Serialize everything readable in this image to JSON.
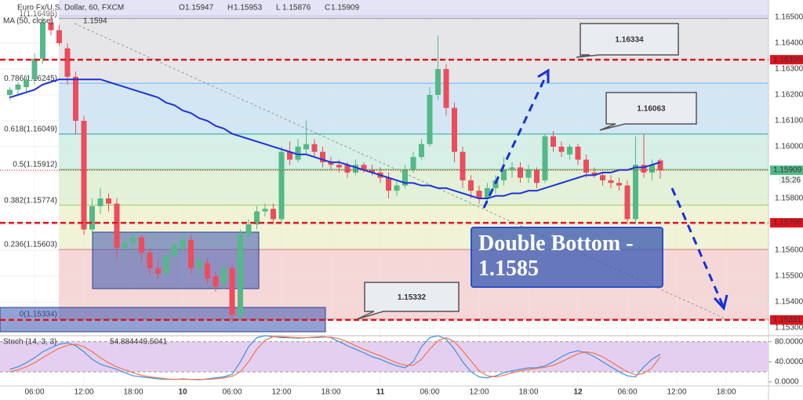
{
  "chart_data": {
    "type": "candlestick",
    "title": "Euro Fx/U.S. Dollar, 60, FXCM",
    "ohlc_legend": [
      {
        "name": "O",
        "value": 1.15947
      },
      {
        "name": "H",
        "value": 1.15953
      },
      {
        "name": "L",
        "value": 1.15876
      },
      {
        "name": "C",
        "value": 1.15909
      }
    ],
    "categories": [
      null,
      null,
      null,
      "06:00",
      null,
      null,
      null,
      null,
      null,
      "12:00",
      null,
      null,
      null,
      null,
      null,
      "18:00",
      null,
      null,
      null,
      null,
      null,
      "10",
      null,
      null,
      null,
      null,
      null,
      "06:00",
      null,
      null,
      null,
      null,
      null,
      "12:00",
      null,
      null,
      null,
      null,
      null,
      "18:00",
      null,
      null,
      null,
      null,
      null,
      "11",
      null,
      null,
      null,
      null,
      null,
      "06:00",
      null,
      null,
      null,
      null,
      null,
      "12:00",
      null,
      null,
      null,
      null,
      null,
      "18:00",
      null,
      null,
      null,
      null,
      null,
      "12",
      null,
      null,
      null,
      null,
      null,
      "06:00",
      null,
      null,
      null,
      null,
      null,
      "12:00",
      null,
      null,
      null,
      null,
      null,
      "18:00",
      null,
      null,
      null,
      null
    ],
    "open": [
      1.162,
      1.1622,
      1.1623,
      1.1626,
      1.1634,
      1.1648,
      1.1645,
      1.1638,
      1.1627,
      1.161,
      1.1568,
      1.1577,
      1.158,
      1.1578,
      1.1561,
      1.1563,
      1.1565,
      1.1559,
      1.1553,
      1.1551,
      1.1558,
      1.1561,
      1.1564,
      1.1553,
      1.1555,
      1.155,
      1.1547,
      1.1553,
      1.1535,
      1.1566,
      1.157,
      1.1575,
      1.1576,
      1.1572,
      1.1598,
      1.1595,
      1.1599,
      1.1601,
      1.1598,
      1.1594,
      1.1593,
      1.1593,
      1.159,
      1.1593,
      1.1591,
      1.159,
      1.1588,
      1.1583,
      1.1585,
      1.1591,
      1.1596,
      1.1601,
      1.162,
      1.163,
      1.1615,
      1.1598,
      1.1587,
      1.1583,
      1.158,
      1.1584,
      1.1587,
      1.1591,
      1.1592,
      1.1588,
      1.1591,
      1.1587,
      1.1604,
      1.16,
      1.1597,
      1.16,
      1.1595,
      1.159,
      1.1589,
      1.1587,
      1.1586,
      1.1585,
      1.1572,
      1.1593,
      1.159,
      1.15947,
      null,
      null,
      null,
      null,
      null,
      null,
      null,
      null,
      null,
      null,
      null,
      null
    ],
    "high": [
      1.1623,
      1.1625,
      1.1627,
      1.1636,
      1.165,
      1.1652,
      1.1647,
      1.164,
      1.1629,
      1.1612,
      1.158,
      1.1584,
      1.1582,
      1.158,
      1.1566,
      1.1567,
      1.1566,
      1.1561,
      1.1556,
      1.156,
      1.1563,
      1.1566,
      1.1566,
      1.1558,
      1.1557,
      1.1552,
      1.1555,
      1.1555,
      1.1568,
      1.1572,
      1.1577,
      1.1578,
      1.1578,
      1.16,
      1.1602,
      1.1603,
      1.161,
      1.1603,
      1.16,
      1.1596,
      1.1595,
      1.1594,
      1.1595,
      1.1594,
      1.1593,
      1.1592,
      1.159,
      1.1587,
      1.1593,
      1.1598,
      1.1603,
      1.1623,
      1.1643,
      1.1632,
      1.1617,
      1.16,
      1.1589,
      1.1585,
      1.1586,
      1.1589,
      1.1596,
      1.1594,
      1.1594,
      1.1593,
      1.1592,
      1.1605,
      1.1606,
      1.1602,
      1.1601,
      1.1601,
      1.1597,
      1.1592,
      1.159,
      1.1589,
      1.1588,
      1.1587,
      1.1604,
      1.1605,
      1.1595,
      1.15953,
      null,
      null,
      null,
      null,
      null,
      null,
      null,
      null,
      null,
      null,
      null,
      null
    ],
    "low": [
      1.1618,
      1.162,
      1.1621,
      1.1624,
      1.1632,
      1.1643,
      1.1639,
      1.1624,
      1.1605,
      1.1566,
      1.1566,
      1.1574,
      1.1575,
      1.1557,
      1.1555,
      1.1558,
      1.1556,
      1.155,
      1.1549,
      1.155,
      1.1555,
      1.1559,
      1.1551,
      1.155,
      1.1547,
      1.1544,
      1.1545,
      1.1532,
      1.1533,
      1.1564,
      1.1568,
      1.1573,
      1.157,
      1.1571,
      1.1593,
      1.1594,
      1.1597,
      1.1596,
      1.1592,
      1.1591,
      1.159,
      1.1588,
      1.1589,
      1.159,
      1.1589,
      1.1586,
      1.158,
      1.1581,
      1.1584,
      1.159,
      1.1595,
      1.16,
      1.1618,
      1.1612,
      1.1594,
      1.1584,
      1.158,
      1.1578,
      1.1578,
      1.1582,
      1.1585,
      1.1588,
      1.1586,
      1.1586,
      1.1584,
      1.1586,
      1.1598,
      1.1596,
      1.1595,
      1.1593,
      1.1588,
      1.1588,
      1.1585,
      1.1584,
      1.1583,
      1.157,
      1.157,
      1.1588,
      1.1587,
      1.15876,
      null,
      null,
      null,
      null,
      null,
      null,
      null,
      null,
      null,
      null,
      null,
      null
    ],
    "close": [
      1.1622,
      1.1624,
      1.1626,
      1.1634,
      1.1648,
      1.1645,
      1.164,
      1.1627,
      1.161,
      1.1568,
      1.1577,
      1.158,
      1.1578,
      1.1561,
      1.1563,
      1.1565,
      1.1559,
      1.1553,
      1.1551,
      1.1558,
      1.1562,
      1.1564,
      1.1553,
      1.1556,
      1.1549,
      1.1546,
      1.1553,
      1.1535,
      1.1566,
      1.157,
      1.1575,
      1.1576,
      1.1572,
      1.1598,
      1.1595,
      1.16,
      1.1601,
      1.1598,
      1.1594,
      1.1593,
      1.1592,
      1.159,
      1.1593,
      1.1591,
      1.159,
      1.1588,
      1.1583,
      1.1585,
      1.1591,
      1.1596,
      1.1601,
      1.162,
      1.163,
      1.1615,
      1.1598,
      1.1587,
      1.1583,
      1.158,
      1.1584,
      1.1587,
      1.1591,
      1.1592,
      1.1588,
      1.1591,
      1.1586,
      1.1604,
      1.16,
      1.1598,
      1.16,
      1.1595,
      1.159,
      1.1589,
      1.1587,
      1.1586,
      1.1585,
      1.1572,
      1.1593,
      1.159,
      1.1593,
      1.15909,
      null,
      null,
      null,
      null,
      null,
      null,
      null,
      null,
      null,
      null,
      null,
      null
    ],
    "up_color": "#53b987",
    "down_color": "#eb4d5c",
    "ylim": [
      1.1527,
      1.16506
    ],
    "yticks": [
      {
        "value": 1.165,
        "label": "1.16500"
      },
      {
        "value": 1.164,
        "label": "1.16400"
      },
      {
        "value": 1.163,
        "label": "1.16300"
      },
      {
        "value": 1.162,
        "label": "1.16200"
      },
      {
        "value": 1.161,
        "label": "1.16100"
      },
      {
        "value": 1.16,
        "label": "1.16000"
      },
      {
        "value": 1.159,
        "label": "1.15900"
      },
      {
        "value": 1.158,
        "label": "1.15800"
      },
      {
        "value": 1.157,
        "label": "1.15700"
      },
      {
        "value": 1.156,
        "label": "1.15600"
      },
      {
        "value": 1.155,
        "label": "1.15500"
      },
      {
        "value": 1.154,
        "label": "1.15400"
      },
      {
        "value": 1.153,
        "label": "1.15300"
      }
    ],
    "ma": {
      "name": "MA (50, close)",
      "last": 1.1594,
      "color": "#1f33d6",
      "values": [
        1.1619,
        1.162,
        1.1621,
        1.1622,
        1.1624,
        1.1625,
        1.1626,
        1.1626,
        1.1626,
        1.1626,
        1.1626,
        1.1626,
        1.1625,
        1.1624,
        1.1623,
        1.1622,
        1.1621,
        1.162,
        1.1619,
        1.1617,
        1.1616,
        1.1614,
        1.1613,
        1.1611,
        1.161,
        1.1608,
        1.1607,
        1.1605,
        1.1604,
        1.1603,
        1.1602,
        1.1601,
        1.16,
        1.1599,
        1.1598,
        1.1597,
        1.1597,
        1.1596,
        1.1595,
        1.1594,
        1.1594,
        1.1593,
        1.1592,
        1.1591,
        1.159,
        1.1589,
        1.1588,
        1.1587,
        1.1586,
        1.1586,
        1.1585,
        1.1585,
        1.1584,
        1.1584,
        1.1583,
        1.1582,
        1.1581,
        1.158,
        1.158,
        1.1581,
        1.1581,
        1.1582,
        1.1582,
        1.1583,
        1.1583,
        1.1584,
        1.1585,
        1.1586,
        1.1587,
        1.1588,
        1.1589,
        1.1589,
        1.159,
        1.159,
        1.1591,
        1.1591,
        1.1592,
        1.1592,
        1.1593,
        1.1594,
        null,
        null,
        null,
        null,
        null,
        null,
        null,
        null,
        null,
        null,
        null,
        null
      ]
    },
    "fib": [
      {
        "value": 1.16495,
        "label": "1(1.16495)",
        "color": "#9e9e9e",
        "fill": "#e6e6e8"
      },
      {
        "value": 1.16245,
        "label": "0.786(1.16245)",
        "color": "#64b5f6",
        "fill": "#d3e6f4"
      },
      {
        "value": 1.16049,
        "label": "0.618(1.16049)",
        "color": "#26a69a",
        "fill": "#d6efe7"
      },
      {
        "value": 1.15912,
        "label": "0.5(1.15912)",
        "color": "#4caf50",
        "fill": "#e2f1d8"
      },
      {
        "value": 1.15774,
        "label": "0.382(1.15774)",
        "color": "#9ccc65",
        "fill": "#f1f3d6"
      },
      {
        "value": 1.15603,
        "label": "0.236(1.15603)",
        "color": "#e57373",
        "fill": "#f6d7d8"
      },
      {
        "value": 1.15334,
        "label": "0(1.15334)",
        "color": "#9e9e9e"
      }
    ],
    "levels": {
      "color": "#e0141e",
      "values": [
        1.16336,
        1.15706,
        1.15331
      ]
    },
    "last_price": 1.15909,
    "last_color": "#53b987",
    "countdown": "15:26",
    "callouts": [
      1.16334,
      1.16063,
      1.15332
    ],
    "note": "Double Bottom - 1.1585",
    "stoch": {
      "title": "Stoch (14, 3, 3)",
      "ylim": [
        -8,
        92
      ],
      "yticks": [
        {
          "value": 80,
          "label": "80.0000"
        },
        {
          "value": 40,
          "label": "40.0000"
        },
        {
          "value": 0,
          "label": "0.0000"
        }
      ],
      "band": [
        20,
        80
      ],
      "series": [
        {
          "color": "#3d8fe0",
          "last": 54.8844,
          "values": [
            25,
            30,
            38,
            48,
            60,
            68,
            75,
            78,
            72,
            60,
            45,
            35,
            30,
            25,
            18,
            12,
            10,
            8,
            6,
            5,
            5,
            6,
            5,
            4,
            6,
            8,
            10,
            15,
            40,
            70,
            88,
            92,
            90,
            88,
            88,
            87,
            88,
            89,
            90,
            88,
            80,
            72,
            65,
            58,
            50,
            45,
            38,
            32,
            28,
            40,
            70,
            88,
            92,
            85,
            65,
            40,
            20,
            10,
            8,
            12,
            18,
            22,
            25,
            28,
            28,
            32,
            40,
            50,
            58,
            62,
            58,
            50,
            40,
            30,
            20,
            12,
            10,
            30,
            45,
            55,
            null,
            null,
            null,
            null,
            null,
            null,
            null,
            null,
            null,
            null,
            null,
            null
          ]
        },
        {
          "color": "#f0754d",
          "last": 49.5041,
          "values": [
            20,
            24,
            30,
            38,
            48,
            58,
            67,
            73,
            75,
            70,
            60,
            48,
            38,
            30,
            24,
            18,
            13,
            10,
            8,
            6,
            5,
            5,
            5,
            5,
            5,
            6,
            8,
            11,
            20,
            40,
            65,
            83,
            90,
            90,
            89,
            88,
            88,
            88,
            89,
            89,
            86,
            80,
            72,
            65,
            58,
            52,
            45,
            38,
            33,
            33,
            45,
            65,
            82,
            88,
            80,
            62,
            42,
            22,
            12,
            10,
            13,
            18,
            22,
            25,
            27,
            29,
            33,
            40,
            48,
            56,
            60,
            57,
            50,
            40,
            30,
            20,
            14,
            17,
            28,
            50,
            null,
            null,
            null,
            null,
            null,
            null,
            null,
            null,
            null,
            null,
            null,
            null
          ]
        }
      ]
    }
  }
}
